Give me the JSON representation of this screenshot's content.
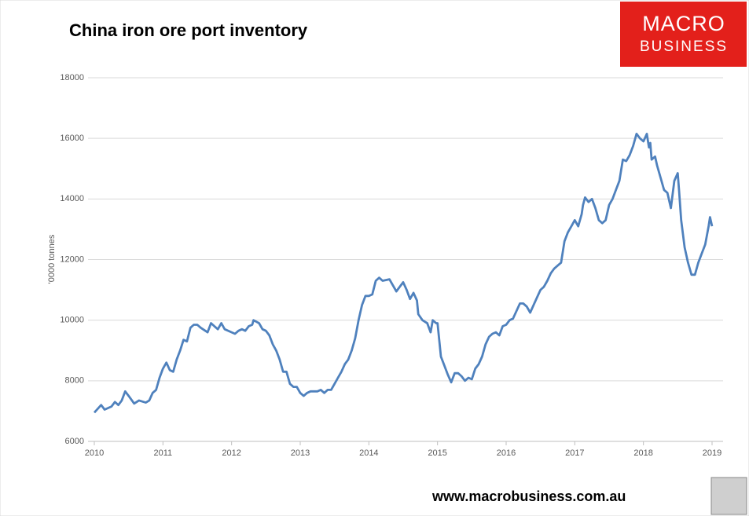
{
  "chart_data": {
    "type": "line",
    "title": "China iron ore port inventory",
    "ylabel": "'0000 tonnes",
    "x": [
      2010.0,
      2010.1,
      2010.15,
      2010.25,
      2010.3,
      2010.35,
      2010.4,
      2010.45,
      2010.5,
      2010.58,
      2010.65,
      2010.75,
      2010.8,
      2010.85,
      2010.9,
      2010.95,
      2011.0,
      2011.05,
      2011.1,
      2011.15,
      2011.2,
      2011.25,
      2011.3,
      2011.35,
      2011.4,
      2011.45,
      2011.5,
      2011.55,
      2011.65,
      2011.7,
      2011.75,
      2011.8,
      2011.85,
      2011.9,
      2012.0,
      2012.05,
      2012.1,
      2012.15,
      2012.2,
      2012.25,
      2012.3,
      2012.32,
      2012.4,
      2012.45,
      2012.5,
      2012.55,
      2012.6,
      2012.65,
      2012.7,
      2012.75,
      2012.8,
      2012.85,
      2012.9,
      2012.95,
      2013.0,
      2013.05,
      2013.1,
      2013.15,
      2013.25,
      2013.3,
      2013.35,
      2013.4,
      2013.45,
      2013.5,
      2013.55,
      2013.6,
      2013.65,
      2013.7,
      2013.75,
      2013.8,
      2013.85,
      2013.9,
      2013.95,
      2014.0,
      2014.05,
      2014.1,
      2014.15,
      2014.2,
      2014.3,
      2014.35,
      2014.4,
      2014.45,
      2014.5,
      2014.55,
      2014.6,
      2014.65,
      2014.7,
      2014.72,
      2014.78,
      2014.85,
      2014.9,
      2014.93,
      2014.98,
      2015.0,
      2015.05,
      2015.1,
      2015.15,
      2015.2,
      2015.25,
      2015.3,
      2015.35,
      2015.4,
      2015.45,
      2015.5,
      2015.55,
      2015.6,
      2015.65,
      2015.7,
      2015.75,
      2015.8,
      2015.85,
      2015.9,
      2015.95,
      2016.0,
      2016.05,
      2016.1,
      2016.15,
      2016.2,
      2016.25,
      2016.3,
      2016.35,
      2016.4,
      2016.45,
      2016.5,
      2016.55,
      2016.6,
      2016.65,
      2016.7,
      2016.75,
      2016.8,
      2016.85,
      2016.9,
      2016.95,
      2017.0,
      2017.05,
      2017.1,
      2017.12,
      2017.15,
      2017.2,
      2017.25,
      2017.3,
      2017.35,
      2017.4,
      2017.45,
      2017.5,
      2017.55,
      2017.6,
      2017.65,
      2017.7,
      2017.75,
      2017.8,
      2017.85,
      2017.9,
      2017.95,
      2018.0,
      2018.05,
      2018.08,
      2018.1,
      2018.12,
      2018.17,
      2018.2,
      2018.25,
      2018.3,
      2018.35,
      2018.4,
      2018.45,
      2018.5,
      2018.52,
      2018.55,
      2018.6,
      2018.65,
      2018.7,
      2018.75,
      2018.8,
      2018.85,
      2018.9,
      2018.95,
      2018.97,
      2019.0
    ],
    "series": [
      {
        "color": "#4f81bd",
        "values": [
          6950,
          7200,
          7050,
          7150,
          7300,
          7200,
          7350,
          7650,
          7500,
          7250,
          7350,
          7280,
          7350,
          7600,
          7700,
          8100,
          8400,
          8600,
          8350,
          8300,
          8700,
          9000,
          9350,
          9300,
          9750,
          9850,
          9850,
          9750,
          9600,
          9900,
          9800,
          9700,
          9900,
          9700,
          9600,
          9550,
          9650,
          9700,
          9650,
          9800,
          9850,
          10000,
          9900,
          9700,
          9650,
          9500,
          9200,
          9000,
          8700,
          8300,
          8300,
          7900,
          7800,
          7800,
          7600,
          7500,
          7600,
          7650,
          7650,
          7700,
          7600,
          7700,
          7700,
          7900,
          8100,
          8300,
          8550,
          8700,
          9000,
          9400,
          10000,
          10500,
          10800,
          10800,
          10850,
          11300,
          11400,
          11300,
          11350,
          11150,
          10950,
          11100,
          11250,
          11000,
          10700,
          10900,
          10650,
          10200,
          10000,
          9900,
          9600,
          10000,
          9900,
          9900,
          8800,
          8500,
          8200,
          7950,
          8250,
          8250,
          8150,
          8000,
          8100,
          8050,
          8400,
          8550,
          8800,
          9200,
          9450,
          9550,
          9600,
          9500,
          9800,
          9850,
          10000,
          10050,
          10300,
          10550,
          10550,
          10450,
          10250,
          10500,
          10750,
          11000,
          11100,
          11300,
          11550,
          11700,
          11800,
          11900,
          12600,
          12900,
          13100,
          13300,
          13100,
          13500,
          13800,
          14050,
          13900,
          14000,
          13700,
          13300,
          13200,
          13300,
          13800,
          14000,
          14300,
          14600,
          15300,
          15250,
          15450,
          15750,
          16150,
          16000,
          15900,
          16150,
          15700,
          15850,
          15300,
          15400,
          15100,
          14700,
          14300,
          14200,
          13700,
          14600,
          14850,
          14250,
          13300,
          12400,
          11900,
          11500,
          11500,
          11900,
          12200,
          12500,
          13100,
          13400,
          13100
        ]
      }
    ],
    "xlim": [
      2010,
      2019
    ],
    "xticks": [
      2010,
      2011,
      2012,
      2013,
      2014,
      2015,
      2016,
      2017,
      2018,
      2019
    ],
    "ylim": [
      6000,
      18000
    ],
    "yticks": [
      6000,
      8000,
      10000,
      12000,
      14000,
      16000,
      18000
    ],
    "grid": true
  },
  "logo": {
    "line1": "MACRO",
    "line2": "BUSINESS"
  },
  "footer": {
    "url": "www.macrobusiness.com.au"
  }
}
